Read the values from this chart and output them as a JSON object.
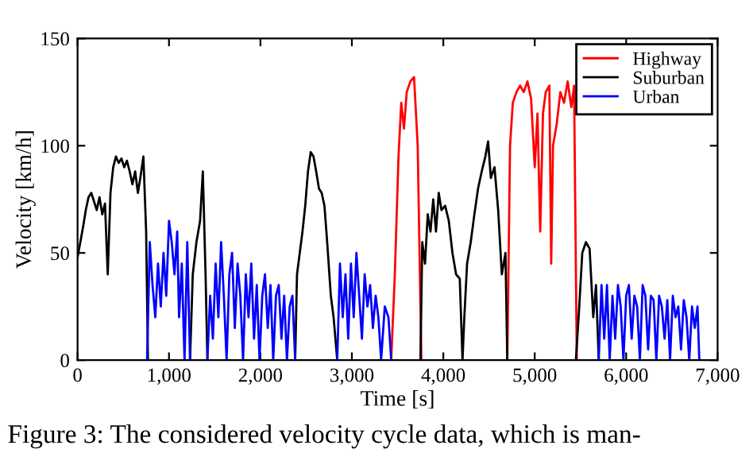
{
  "chart_data": {
    "type": "line",
    "xlabel": "Time [s]",
    "ylabel": "Velocity [km/h]",
    "xlim": [
      0,
      7000
    ],
    "ylim": [
      0,
      150
    ],
    "xticks": [
      0,
      {
        "value": 1000,
        "label": "1,000"
      },
      {
        "value": 2000,
        "label": "2,000"
      },
      {
        "value": 3000,
        "label": "3,000"
      },
      {
        "value": 4000,
        "label": "4,000"
      },
      {
        "value": 5000,
        "label": "5,000"
      },
      {
        "value": 6000,
        "label": "6,000"
      },
      {
        "value": 7000,
        "label": "7,000"
      }
    ],
    "yticks": [
      0,
      50,
      100,
      150
    ],
    "grid": false,
    "legend": "top right",
    "marker": "none",
    "line_style": "solid",
    "annotations": [
      "Figure 3: The considered velocity cycle data, which is man-"
    ],
    "series": [
      {
        "name": "Highway",
        "color": "#ff0000",
        "x": [
          3430,
          3470,
          3510,
          3540,
          3570,
          3600,
          3640,
          3680,
          3720,
          3760,
          null,
          4700,
          4730,
          4760,
          4800,
          4840,
          4880,
          4920,
          4960,
          5000,
          5030,
          5060,
          5090,
          5120,
          5160,
          5180,
          5200,
          5240,
          5280,
          5320,
          5360,
          5400,
          5430,
          5460
        ],
        "values": [
          0,
          40,
          95,
          120,
          108,
          125,
          130,
          132,
          100,
          0,
          null,
          0,
          100,
          120,
          125,
          128,
          125,
          130,
          122,
          90,
          115,
          60,
          115,
          125,
          128,
          45,
          100,
          110,
          125,
          120,
          130,
          118,
          128,
          0
        ]
      },
      {
        "name": "Suburban",
        "color": "#000000",
        "x": [
          0,
          30,
          60,
          90,
          120,
          150,
          180,
          210,
          240,
          270,
          300,
          330,
          360,
          390,
          420,
          450,
          480,
          510,
          540,
          570,
          600,
          630,
          660,
          690,
          720,
          750,
          770,
          null,
          1230,
          1260,
          1300,
          1340,
          1370,
          1400,
          1420,
          null,
          2380,
          2400,
          2430,
          2460,
          2490,
          2520,
          2550,
          2580,
          2610,
          2640,
          2670,
          2700,
          2730,
          2770,
          2800,
          2840,
          null,
          3750,
          3770,
          3800,
          3830,
          3860,
          3890,
          3920,
          3950,
          3980,
          4020,
          4060,
          4100,
          4140,
          4180,
          4210,
          4230,
          4260,
          4300,
          4340,
          4380,
          4420,
          4460,
          4490,
          4520,
          4560,
          4600,
          4640,
          4680,
          4700,
          null,
          5450,
          5480,
          5520,
          5560,
          5600,
          5640,
          5670,
          5700
        ],
        "values": [
          48,
          55,
          62,
          70,
          76,
          78,
          74,
          70,
          76,
          68,
          73,
          40,
          78,
          90,
          95,
          92,
          94,
          90,
          93,
          88,
          82,
          88,
          78,
          86,
          95,
          60,
          0,
          null,
          0,
          40,
          55,
          65,
          88,
          40,
          0,
          null,
          0,
          40,
          50,
          60,
          72,
          88,
          97,
          95,
          88,
          80,
          78,
          72,
          55,
          30,
          20,
          0,
          null,
          0,
          55,
          45,
          68,
          60,
          75,
          60,
          78,
          70,
          72,
          65,
          50,
          40,
          38,
          0,
          20,
          45,
          55,
          68,
          80,
          88,
          95,
          102,
          85,
          90,
          70,
          40,
          50,
          0,
          null,
          0,
          20,
          50,
          55,
          52,
          20,
          35,
          0
        ]
      },
      {
        "name": "Urban",
        "color": "#0000ff",
        "x": [
          760,
          790,
          820,
          850,
          880,
          910,
          940,
          970,
          1000,
          1030,
          1060,
          1090,
          1110,
          1140,
          1170,
          1200,
          1230,
          null,
          1420,
          1450,
          1480,
          1510,
          1540,
          1570,
          1600,
          1630,
          1660,
          1690,
          1720,
          1750,
          1780,
          1810,
          1840,
          1870,
          1900,
          1930,
          1960,
          1990,
          2020,
          2050,
          2080,
          2110,
          2140,
          2170,
          2200,
          2230,
          2260,
          2290,
          2320,
          2350,
          2380,
          null,
          2840,
          2870,
          2900,
          2930,
          2960,
          2990,
          3020,
          3050,
          3080,
          3110,
          3140,
          3170,
          3200,
          3230,
          3260,
          3290,
          3320,
          3360,
          3400,
          3430,
          null,
          5700,
          5730,
          5760,
          5790,
          5820,
          5850,
          5880,
          5910,
          5940,
          5970,
          6000,
          6030,
          6060,
          6090,
          6120,
          6150,
          6180,
          6210,
          6240,
          6270,
          6300,
          6330,
          6360,
          6390,
          6420,
          6450,
          6480,
          6510,
          6540,
          6570,
          6600,
          6630,
          6660,
          6690,
          6720,
          6750,
          6780,
          6800
        ],
        "values": [
          0,
          55,
          35,
          20,
          45,
          25,
          50,
          30,
          65,
          55,
          40,
          60,
          20,
          45,
          0,
          55,
          0,
          null,
          0,
          30,
          10,
          45,
          20,
          55,
          30,
          0,
          40,
          50,
          15,
          45,
          30,
          0,
          40,
          20,
          45,
          10,
          35,
          0,
          30,
          40,
          15,
          35,
          0,
          30,
          35,
          10,
          30,
          0,
          25,
          30,
          0,
          null,
          0,
          45,
          20,
          40,
          10,
          45,
          20,
          50,
          30,
          10,
          40,
          25,
          35,
          15,
          30,
          20,
          0,
          25,
          20,
          0,
          null,
          0,
          35,
          10,
          35,
          0,
          30,
          10,
          35,
          25,
          0,
          30,
          35,
          10,
          30,
          25,
          0,
          35,
          30,
          5,
          30,
          28,
          0,
          30,
          25,
          10,
          28,
          0,
          30,
          20,
          25,
          5,
          28,
          20,
          0,
          25,
          15,
          25,
          0
        ]
      }
    ]
  }
}
